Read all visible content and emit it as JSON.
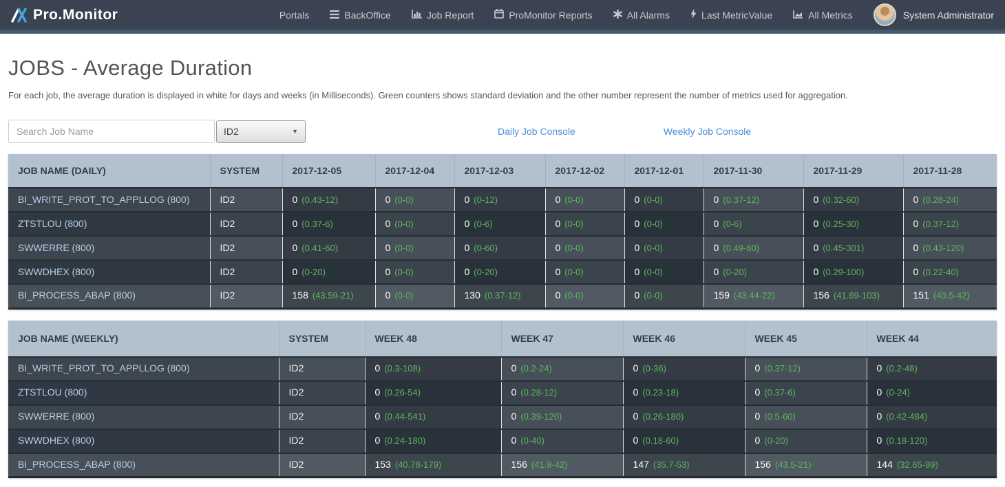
{
  "nav": {
    "brand": "Pro.Monitor",
    "items": [
      {
        "label": "Portals",
        "icon": "none"
      },
      {
        "label": "BackOffice",
        "icon": "menu-icon"
      },
      {
        "label": "Job Report",
        "icon": "bar-chart-icon"
      },
      {
        "label": "ProMonitor Reports",
        "icon": "calendar-icon"
      },
      {
        "label": "All Alarms",
        "icon": "asterisk-icon"
      },
      {
        "label": "Last MetricValue",
        "icon": "bolt-icon"
      },
      {
        "label": "All Metrics",
        "icon": "area-chart-icon"
      }
    ],
    "user": "System Administrator"
  },
  "page": {
    "title": "JOBS - Average Duration",
    "description": "For each job, the average duration is displayed in white for days and weeks (in Milliseconds). Green counters shows standard deviation and the other number represent the number of metrics used for aggregation."
  },
  "controls": {
    "search_placeholder": "Search Job Name",
    "system_filter_value": "ID2",
    "daily_console_link": "Daily Job Console",
    "weekly_console_link": "Weekly Job Console"
  },
  "colors": {
    "navbar_bg": "#3b4252",
    "navbar_accent": "#46596d",
    "table_header_bg": "#b2c1cd",
    "row_odd": "#3d454f",
    "row_even": "#303943",
    "row_highlight": "#475059",
    "link_blue": "#4a90d9",
    "job_link": "#b6cee5",
    "stddev_green": "#5cb85c"
  },
  "daily_table": {
    "columns": [
      "JOB NAME (DAILY)",
      "SYSTEM",
      "2017-12-05",
      "2017-12-04",
      "2017-12-03",
      "2017-12-02",
      "2017-12-01",
      "2017-11-30",
      "2017-11-29",
      "2017-11-28"
    ],
    "rows": [
      {
        "job": "BI_WRITE_PROT_TO_APPLLOG (800)",
        "system": "ID2",
        "values": [
          [
            "0",
            "(0.43-12)"
          ],
          [
            "0",
            "(0-0)"
          ],
          [
            "0",
            "(0-12)"
          ],
          [
            "0",
            "(0-0)"
          ],
          [
            "0",
            "(0-0)"
          ],
          [
            "0",
            "(0.37-12)"
          ],
          [
            "0",
            "(0.32-60)"
          ],
          [
            "0",
            "(0.28-24)"
          ]
        ]
      },
      {
        "job": "ZTSTLOU (800)",
        "system": "ID2",
        "values": [
          [
            "0",
            "(0.37-6)"
          ],
          [
            "0",
            "(0-0)"
          ],
          [
            "0",
            "(0-6)"
          ],
          [
            "0",
            "(0-0)"
          ],
          [
            "0",
            "(0-0)"
          ],
          [
            "0",
            "(0-6)"
          ],
          [
            "0",
            "(0.25-30)"
          ],
          [
            "0",
            "(0.37-12)"
          ]
        ]
      },
      {
        "job": "SWWERRE (800)",
        "system": "ID2",
        "values": [
          [
            "0",
            "(0.41-60)"
          ],
          [
            "0",
            "(0-0)"
          ],
          [
            "0",
            "(0-60)"
          ],
          [
            "0",
            "(0-0)"
          ],
          [
            "0",
            "(0-0)"
          ],
          [
            "0",
            "(0.49-60)"
          ],
          [
            "0",
            "(0.45-301)"
          ],
          [
            "0",
            "(0.43-120)"
          ]
        ]
      },
      {
        "job": "SWWDHEX (800)",
        "system": "ID2",
        "values": [
          [
            "0",
            "(0-20)"
          ],
          [
            "0",
            "(0-0)"
          ],
          [
            "0",
            "(0-20)"
          ],
          [
            "0",
            "(0-0)"
          ],
          [
            "0",
            "(0-0)"
          ],
          [
            "0",
            "(0-20)"
          ],
          [
            "0",
            "(0.29-100)"
          ],
          [
            "0",
            "(0.22-40)"
          ]
        ]
      },
      {
        "job": "BI_PROCESS_ABAP (800)",
        "system": "ID2",
        "values": [
          [
            "158",
            "(43.59-21)"
          ],
          [
            "0",
            "(0-0)"
          ],
          [
            "130",
            "(0.37-12)"
          ],
          [
            "0",
            "(0-0)"
          ],
          [
            "0",
            "(0-0)"
          ],
          [
            "159",
            "(43.44-22)"
          ],
          [
            "156",
            "(41.69-103)"
          ],
          [
            "151",
            "(40.5-42)"
          ]
        ]
      }
    ]
  },
  "weekly_table": {
    "columns": [
      "JOB NAME (WEEKLY)",
      "SYSTEM",
      "WEEK 48",
      "WEEK 47",
      "WEEK 46",
      "WEEK 45",
      "WEEK 44"
    ],
    "rows": [
      {
        "job": "BI_WRITE_PROT_TO_APPLLOG (800)",
        "system": "ID2",
        "values": [
          [
            "0",
            "(0.3-108)"
          ],
          [
            "0",
            "(0.2-24)"
          ],
          [
            "0",
            "(0-36)"
          ],
          [
            "0",
            "(0.37-12)"
          ],
          [
            "0",
            "(0.2-48)"
          ]
        ]
      },
      {
        "job": "ZTSTLOU (800)",
        "system": "ID2",
        "values": [
          [
            "0",
            "(0.26-54)"
          ],
          [
            "0",
            "(0.28-12)"
          ],
          [
            "0",
            "(0.23-18)"
          ],
          [
            "0",
            "(0.37-6)"
          ],
          [
            "0",
            "(0-24)"
          ]
        ]
      },
      {
        "job": "SWWERRE (800)",
        "system": "ID2",
        "values": [
          [
            "0",
            "(0.44-541)"
          ],
          [
            "0",
            "(0.39-120)"
          ],
          [
            "0",
            "(0.26-180)"
          ],
          [
            "0",
            "(0.5-60)"
          ],
          [
            "0",
            "(0.42-484)"
          ]
        ]
      },
      {
        "job": "SWWDHEX (800)",
        "system": "ID2",
        "values": [
          [
            "0",
            "(0.24-180)"
          ],
          [
            "0",
            "(0-40)"
          ],
          [
            "0",
            "(0.18-60)"
          ],
          [
            "0",
            "(0-20)"
          ],
          [
            "0",
            "(0.18-120)"
          ]
        ]
      },
      {
        "job": "BI_PROCESS_ABAP (800)",
        "system": "ID2",
        "values": [
          [
            "153",
            "(40.78-179)"
          ],
          [
            "156",
            "(41.9-42)"
          ],
          [
            "147",
            "(35.7-53)"
          ],
          [
            "156",
            "(43.5-21)"
          ],
          [
            "144",
            "(32.65-99)"
          ]
        ]
      }
    ]
  }
}
